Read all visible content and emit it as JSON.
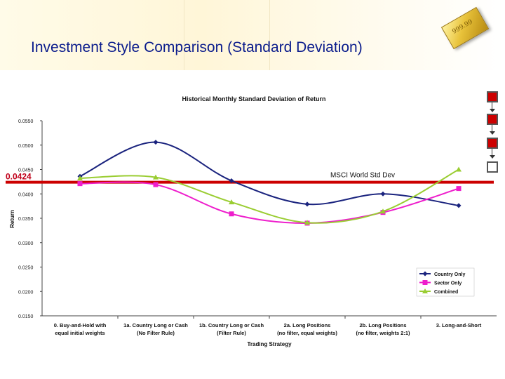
{
  "slide": {
    "title": "Investment Style Comparison (Standard Deviation)",
    "gold_bar_text": "999.99"
  },
  "nav_squares": [
    {
      "state": "on"
    },
    {
      "state": "on"
    },
    {
      "state": "on"
    },
    {
      "state": "off"
    }
  ],
  "chart_data": {
    "type": "line",
    "title": "Historical Monthly Standard Deviation of Return",
    "xlabel": "Trading Strategy",
    "ylabel": "Return",
    "ylim": [
      0.015,
      0.055
    ],
    "yticks": [
      "0.0550",
      "0.0500",
      "0.0450",
      "0.0400",
      "0.0350",
      "0.0300",
      "0.0250",
      "0.0200",
      "0.0150"
    ],
    "categories": [
      [
        "0. Buy-and-Hold with",
        "equal initial weights"
      ],
      [
        "1a. Country Long or Cash",
        "(No Filter Rule)"
      ],
      [
        "1b. Country Long or Cash",
        "(Filter Rule)"
      ],
      [
        "2a. Long Positions",
        "(no filter, equal weights)"
      ],
      [
        "2b. Long Positions",
        "(no filter, weights 2:1)"
      ],
      [
        "3. Long-and-Short",
        ""
      ]
    ],
    "series": [
      {
        "name": "Country Only",
        "color": "#1a237e",
        "marker": "diamond",
        "values": [
          0.0436,
          0.0506,
          0.0427,
          0.0379,
          0.04,
          0.0376
        ]
      },
      {
        "name": "Sector Only",
        "color": "#ee1ecc",
        "marker": "square",
        "values": [
          0.0421,
          0.0419,
          0.0359,
          0.034,
          0.0362,
          0.0411
        ]
      },
      {
        "name": "Combined",
        "color": "#9acd32",
        "marker": "triangle",
        "values": [
          0.0432,
          0.0434,
          0.0383,
          0.0341,
          0.0364,
          0.045
        ]
      }
    ],
    "grid": false,
    "legend": "bottom-right",
    "reference_line": {
      "value": 0.0424,
      "label": "0.0424",
      "name": "MSCI World Std Dev",
      "color": "#cc0000"
    }
  }
}
